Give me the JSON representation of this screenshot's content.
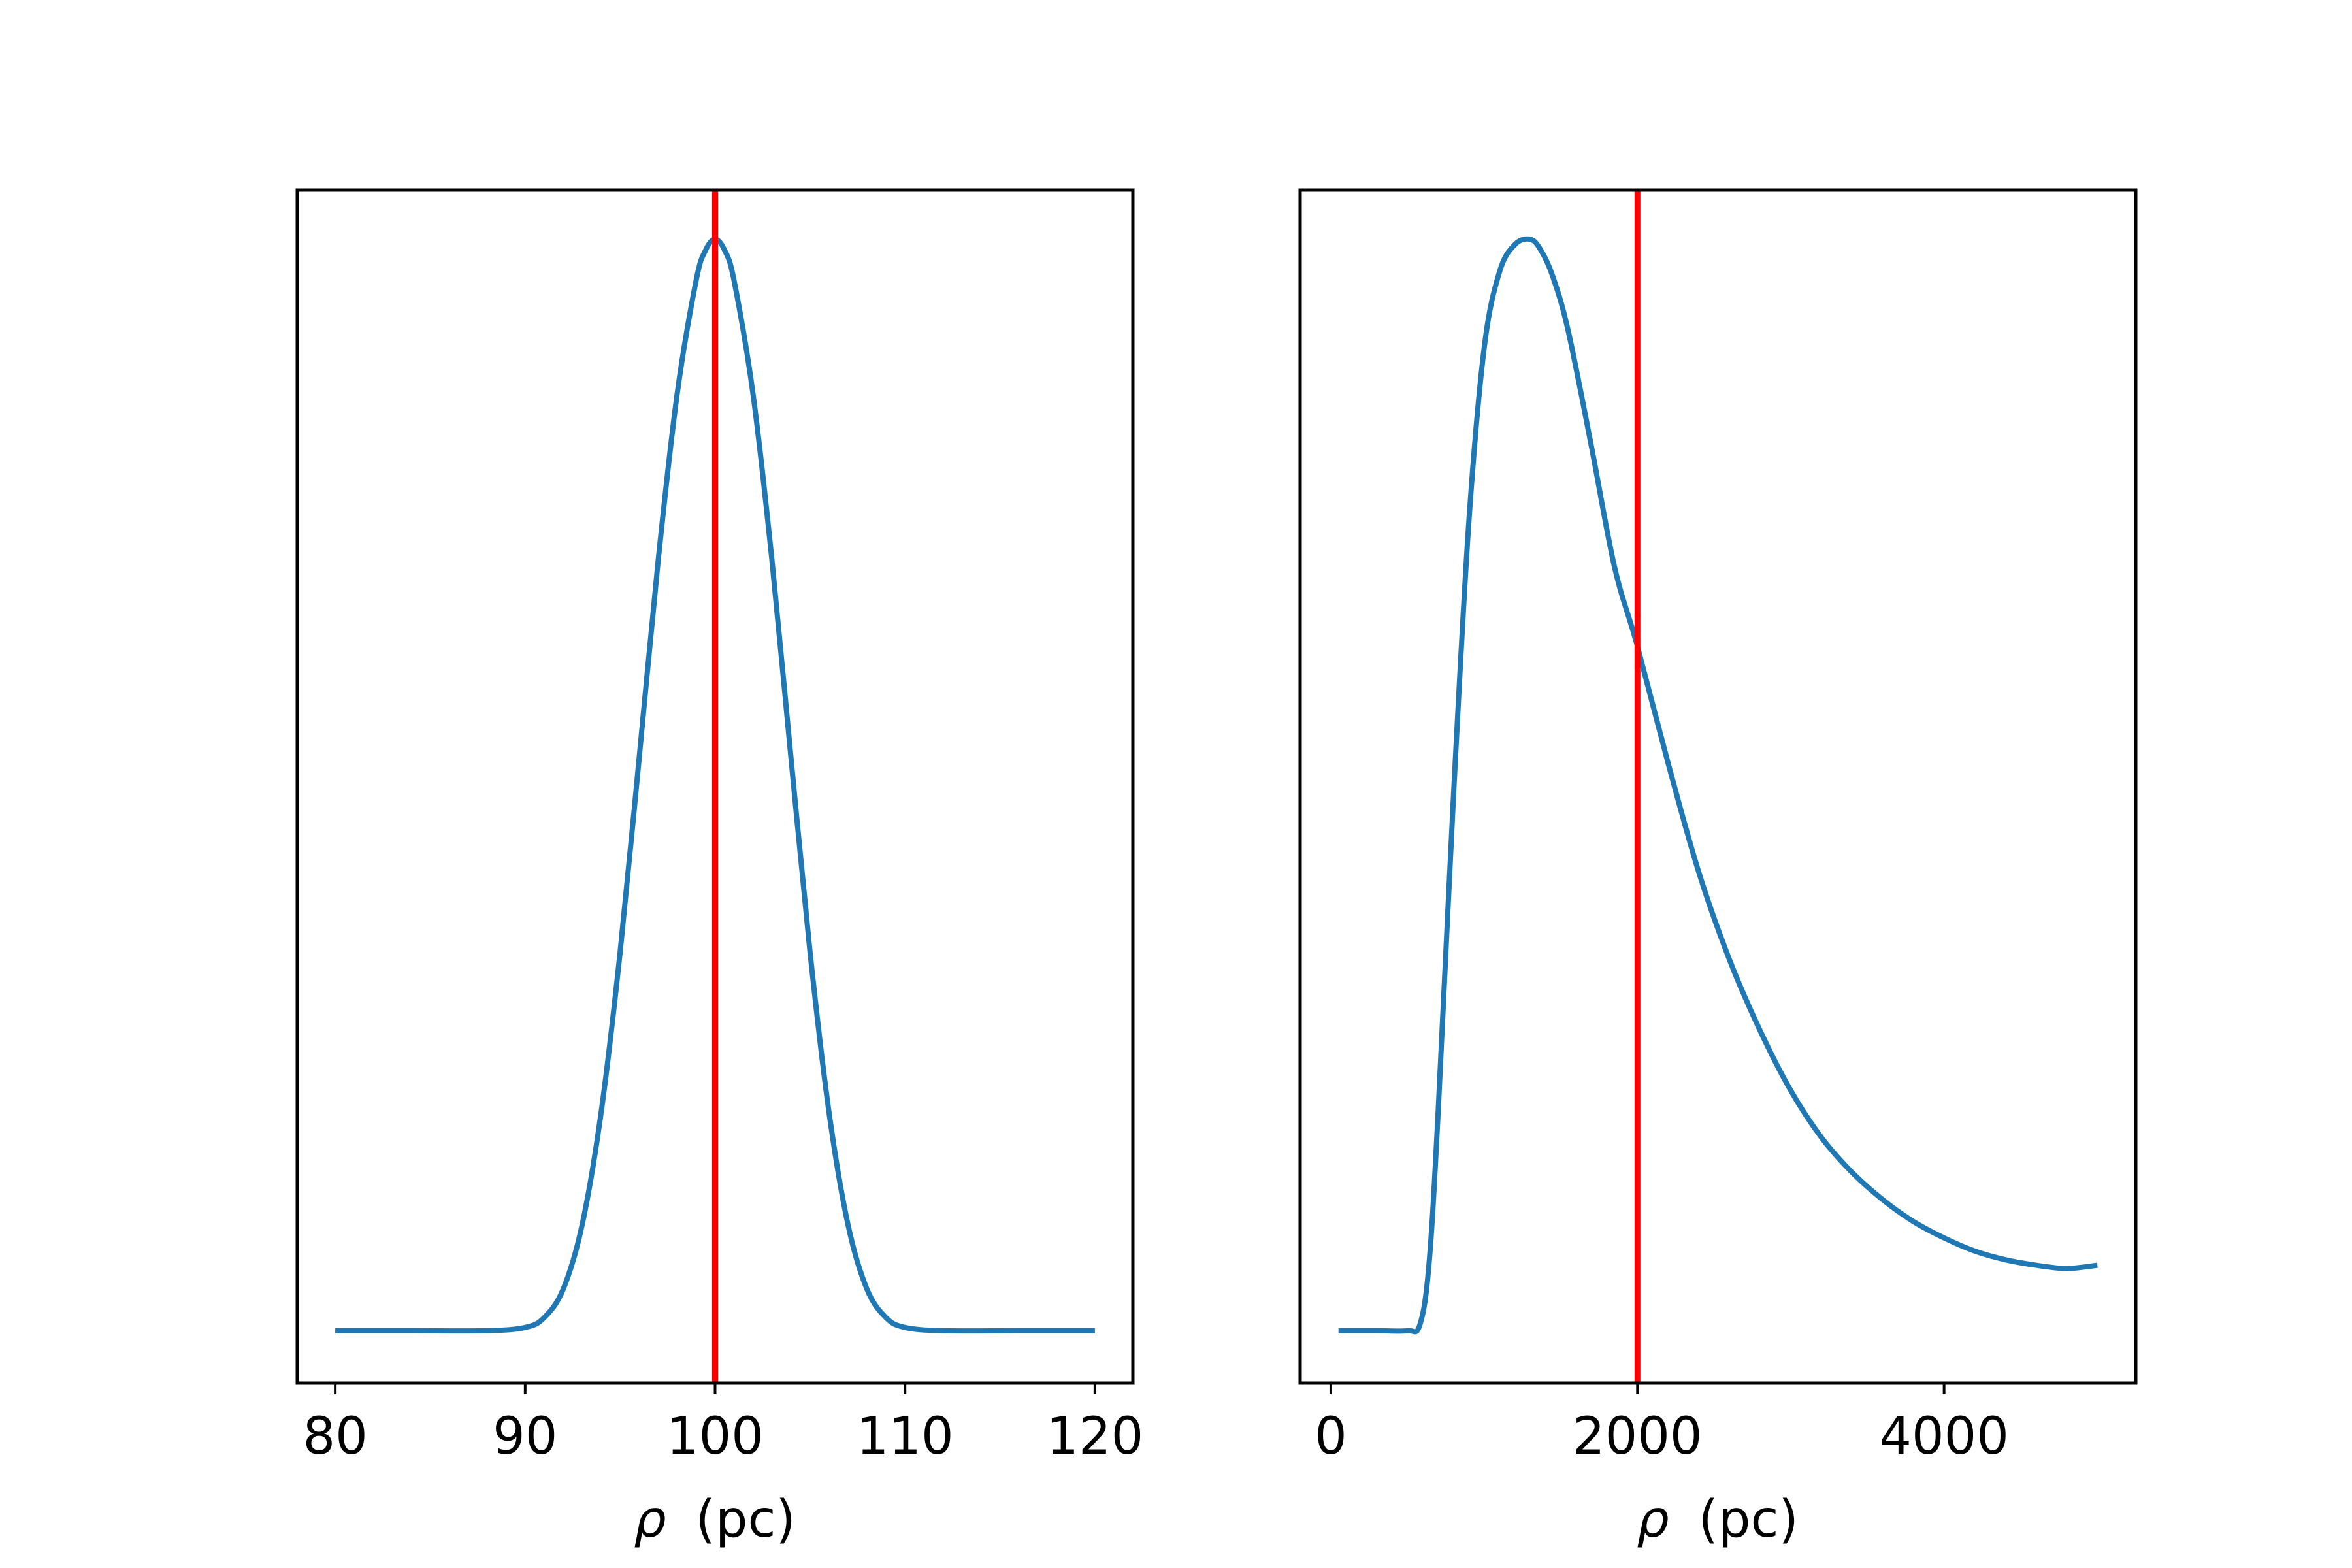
{
  "chart_data": [
    {
      "type": "line",
      "xlabel_italic": "ρ",
      "xlabel_unit": "(pc)",
      "xlim": [
        78,
        122
      ],
      "xticks": [
        80,
        90,
        100,
        110,
        120
      ],
      "ylim": [
        -0.048,
        1.045
      ],
      "y_ticks_shown": false,
      "grid": false,
      "curve_color": "#1f77b4",
      "vline_color": "#ff0000",
      "vline_x": 100,
      "series": [
        {
          "x": [
            80,
            84,
            88,
            90,
            91,
            92,
            93,
            94,
            95,
            96,
            97,
            98,
            99,
            99.5,
            100,
            100.5,
            101,
            102,
            103,
            104,
            105,
            106,
            107,
            108,
            109,
            110,
            112,
            116,
            120
          ],
          "y": [
            0,
            0,
            0,
            0.003,
            0.012,
            0.038,
            0.097,
            0.2,
            0.347,
            0.524,
            0.705,
            0.858,
            0.962,
            0.99,
            1.0,
            0.99,
            0.962,
            0.858,
            0.705,
            0.524,
            0.347,
            0.2,
            0.097,
            0.038,
            0.012,
            0.003,
            0,
            0,
            0
          ]
        }
      ]
    },
    {
      "type": "line",
      "xlabel_italic": "ρ",
      "xlabel_unit": "(pc)",
      "xlim": [
        -200,
        5250
      ],
      "xticks": [
        0,
        2000,
        4000
      ],
      "ylim": [
        -0.048,
        1.045
      ],
      "y_ticks_shown": false,
      "grid": false,
      "curve_color": "#1f77b4",
      "vline_color": "#ff0000",
      "vline_x": 2000,
      "series": [
        {
          "x": [
            50,
            300,
            500,
            580,
            640,
            700,
            800,
            900,
            1000,
            1100,
            1200,
            1300,
            1370,
            1450,
            1550,
            1700,
            1850,
            2000,
            2200,
            2400,
            2600,
            2800,
            3000,
            3200,
            3400,
            3600,
            3800,
            4000,
            4200,
            4400,
            4600,
            4800,
            5000
          ],
          "y": [
            0,
            0,
            0,
            0.005,
            0.06,
            0.2,
            0.49,
            0.74,
            0.9,
            0.97,
            0.995,
            1.0,
            0.99,
            0.965,
            0.915,
            0.81,
            0.7,
            0.627,
            0.52,
            0.42,
            0.34,
            0.275,
            0.22,
            0.177,
            0.145,
            0.12,
            0.1,
            0.085,
            0.073,
            0.065,
            0.06,
            0.057,
            0.06
          ]
        }
      ]
    }
  ]
}
